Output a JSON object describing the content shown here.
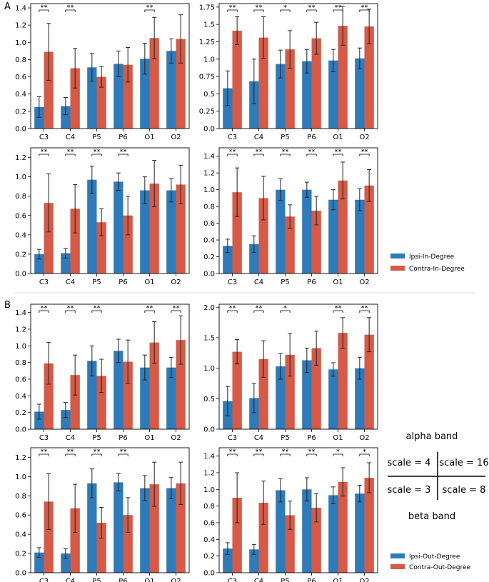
{
  "colors": {
    "ipsi": "#2f7ab8",
    "contra": "#d55a48",
    "error": "#222222",
    "divider": "#dddddd"
  },
  "sections": [
    {
      "label": "A",
      "legend": [
        {
          "series": "ipsi",
          "label": "Ipsi-In-Degree"
        },
        {
          "series": "contra",
          "label": "Contra-In-Degree"
        }
      ]
    },
    {
      "label": "B",
      "legend": [
        {
          "series": "ipsi",
          "label": "Ipsi-Out-Degree"
        },
        {
          "series": "contra",
          "label": "Contra-Out-Degree"
        }
      ]
    }
  ],
  "scale_key": {
    "top_label": "alpha band",
    "bottom_label": "beta band",
    "top_left": "scale = 4",
    "top_right": "scale = 16",
    "bottom_left": "scale = 3",
    "bottom_right": "scale = 8"
  },
  "chart_data": [
    {
      "id": "A-alpha-scale4",
      "type": "bar",
      "categories": [
        "C3",
        "C4",
        "P5",
        "P6",
        "O1",
        "O2"
      ],
      "ylim": [
        0,
        1.45
      ],
      "yticks": [
        0,
        0.2,
        0.4,
        0.6,
        0.8,
        1.0,
        1.2,
        1.4
      ],
      "series": [
        {
          "name": "Ipsi-In-Degree",
          "key": "ipsi",
          "values": [
            0.25,
            0.26,
            0.71,
            0.75,
            0.81,
            0.9
          ],
          "err": [
            0.12,
            0.1,
            0.16,
            0.15,
            0.18,
            0.14
          ]
        },
        {
          "name": "Contra-In-Degree",
          "key": "contra",
          "values": [
            0.89,
            0.7,
            0.6,
            0.74,
            1.05,
            1.04
          ],
          "err": [
            0.33,
            0.23,
            0.12,
            0.2,
            0.24,
            0.28
          ]
        }
      ],
      "significance": [
        "**",
        "**",
        "",
        "",
        "**",
        ""
      ]
    },
    {
      "id": "A-alpha-scale16",
      "type": "bar",
      "categories": [
        "C3",
        "C4",
        "P5",
        "P6",
        "O1",
        "O2"
      ],
      "ylim": [
        0,
        1.8
      ],
      "yticks": [
        0,
        0.25,
        0.5,
        0.75,
        1.0,
        1.25,
        1.5,
        1.75
      ],
      "series": [
        {
          "name": "Ipsi-In-Degree",
          "key": "ipsi",
          "values": [
            0.58,
            0.68,
            0.93,
            0.97,
            0.98,
            1.01
          ],
          "err": [
            0.25,
            0.32,
            0.2,
            0.17,
            0.16,
            0.15
          ]
        },
        {
          "name": "Contra-In-Degree",
          "key": "contra",
          "values": [
            1.41,
            1.31,
            1.14,
            1.3,
            1.48,
            1.47
          ],
          "err": [
            0.2,
            0.3,
            0.27,
            0.23,
            0.28,
            0.25
          ]
        }
      ],
      "significance": [
        "**",
        "**",
        "*",
        "**",
        "**",
        "**"
      ]
    },
    {
      "id": "A-beta-scale3",
      "type": "bar",
      "categories": [
        "C3",
        "C4",
        "P5",
        "P6",
        "O1",
        "O2"
      ],
      "ylim": [
        0,
        1.3
      ],
      "yticks": [
        0,
        0.2,
        0.4,
        0.6,
        0.8,
        1.0,
        1.2
      ],
      "series": [
        {
          "name": "Ipsi-In-Degree",
          "key": "ipsi",
          "values": [
            0.2,
            0.21,
            0.97,
            0.95,
            0.86,
            0.86
          ],
          "err": [
            0.05,
            0.05,
            0.14,
            0.09,
            0.14,
            0.12
          ]
        },
        {
          "name": "Contra-In-Degree",
          "key": "contra",
          "values": [
            0.73,
            0.67,
            0.53,
            0.6,
            0.93,
            0.92
          ],
          "err": [
            0.3,
            0.25,
            0.14,
            0.2,
            0.24,
            0.2
          ]
        }
      ],
      "significance": [
        "**",
        "**",
        "**",
        "**",
        "",
        ""
      ]
    },
    {
      "id": "A-beta-scale8",
      "type": "bar",
      "categories": [
        "C3",
        "C4",
        "P5",
        "P6",
        "O1",
        "O2"
      ],
      "ylim": [
        0,
        1.5
      ],
      "yticks": [
        0,
        0.2,
        0.4,
        0.6,
        0.8,
        1.0,
        1.2,
        1.4
      ],
      "series": [
        {
          "name": "Ipsi-In-Degree",
          "key": "ipsi",
          "values": [
            0.33,
            0.35,
            1.0,
            1.0,
            0.88,
            0.88
          ],
          "err": [
            0.08,
            0.1,
            0.13,
            0.09,
            0.12,
            0.13
          ]
        },
        {
          "name": "Contra-In-Degree",
          "key": "contra",
          "values": [
            0.97,
            0.9,
            0.68,
            0.75,
            1.11,
            1.05
          ],
          "err": [
            0.29,
            0.26,
            0.14,
            0.17,
            0.22,
            0.19
          ]
        }
      ],
      "significance": [
        "**",
        "**",
        "**",
        "**",
        "**",
        "**"
      ]
    },
    {
      "id": "B-alpha-scale4",
      "type": "bar",
      "categories": [
        "C3",
        "C4",
        "P5",
        "P6",
        "O1",
        "O2"
      ],
      "ylim": [
        0,
        1.5
      ],
      "yticks": [
        0,
        0.2,
        0.4,
        0.6,
        0.8,
        1.0,
        1.2,
        1.4
      ],
      "series": [
        {
          "name": "Ipsi-Out-Degree",
          "key": "ipsi",
          "values": [
            0.21,
            0.23,
            0.82,
            0.94,
            0.74,
            0.74
          ],
          "err": [
            0.09,
            0.09,
            0.18,
            0.14,
            0.15,
            0.12
          ]
        },
        {
          "name": "Contra-Out-Degree",
          "key": "contra",
          "values": [
            0.79,
            0.65,
            0.64,
            0.81,
            1.04,
            1.07
          ],
          "err": [
            0.25,
            0.24,
            0.2,
            0.26,
            0.25,
            0.29
          ]
        }
      ],
      "significance": [
        "**",
        "**",
        "**",
        "",
        "**",
        "**"
      ]
    },
    {
      "id": "B-alpha-scale16",
      "type": "bar",
      "categories": [
        "C3",
        "C4",
        "P5",
        "P6",
        "O1",
        "O2"
      ],
      "ylim": [
        0,
        2.05
      ],
      "yticks": [
        0,
        0.5,
        1.0,
        1.5,
        2.0
      ],
      "series": [
        {
          "name": "Ipsi-Out-Degree",
          "key": "ipsi",
          "values": [
            0.46,
            0.51,
            1.03,
            1.13,
            0.98,
            1.0
          ],
          "err": [
            0.24,
            0.24,
            0.21,
            0.2,
            0.11,
            0.18
          ]
        },
        {
          "name": "Contra-Out-Degree",
          "key": "contra",
          "values": [
            1.27,
            1.15,
            1.22,
            1.33,
            1.58,
            1.55
          ],
          "err": [
            0.2,
            0.3,
            0.35,
            0.28,
            0.25,
            0.28
          ]
        }
      ],
      "significance": [
        "**",
        "**",
        "*",
        "",
        "**",
        "**"
      ]
    },
    {
      "id": "B-beta-scale3",
      "type": "bar",
      "categories": [
        "C3",
        "C4",
        "P5",
        "P6",
        "O1",
        "O2"
      ],
      "ylim": [
        0,
        1.3
      ],
      "yticks": [
        0,
        0.2,
        0.4,
        0.6,
        0.8,
        1.0,
        1.2
      ],
      "series": [
        {
          "name": "Ipsi-Out-Degree",
          "key": "ipsi",
          "values": [
            0.21,
            0.2,
            0.93,
            0.94,
            0.88,
            0.88
          ],
          "err": [
            0.05,
            0.05,
            0.15,
            0.09,
            0.13,
            0.11
          ]
        },
        {
          "name": "Contra-Out-Degree",
          "key": "contra",
          "values": [
            0.74,
            0.67,
            0.52,
            0.6,
            0.92,
            0.93
          ],
          "err": [
            0.29,
            0.25,
            0.16,
            0.18,
            0.23,
            0.22
          ]
        }
      ],
      "significance": [
        "**",
        "**",
        "**",
        "**",
        "",
        ""
      ]
    },
    {
      "id": "B-beta-scale8",
      "type": "bar",
      "categories": [
        "C3",
        "C4",
        "P5",
        "P6",
        "O1",
        "O2"
      ],
      "ylim": [
        0,
        1.5
      ],
      "yticks": [
        0,
        0.2,
        0.4,
        0.6,
        0.8,
        1.0,
        1.2,
        1.4
      ],
      "series": [
        {
          "name": "Ipsi-Out-Degree",
          "key": "ipsi",
          "values": [
            0.29,
            0.28,
            0.99,
            1.0,
            0.93,
            0.95
          ],
          "err": [
            0.07,
            0.06,
            0.14,
            0.14,
            0.1,
            0.1
          ]
        },
        {
          "name": "Contra-Out-Degree",
          "key": "contra",
          "values": [
            0.9,
            0.84,
            0.69,
            0.78,
            1.09,
            1.14
          ],
          "err": [
            0.3,
            0.26,
            0.17,
            0.17,
            0.17,
            0.18
          ]
        }
      ],
      "significance": [
        "**",
        "**",
        "**",
        "**",
        "*",
        "*"
      ]
    }
  ]
}
